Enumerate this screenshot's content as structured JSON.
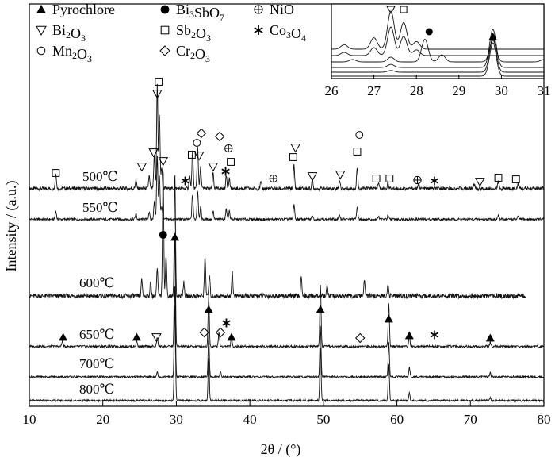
{
  "chart_data": {
    "type": "line",
    "xlabel": "2θ / (°)",
    "ylabel": "Intensity / (a.u.)",
    "xlim": [
      10,
      80
    ],
    "xticks": [
      10,
      20,
      30,
      40,
      50,
      60,
      70,
      80
    ],
    "legend_placement": "top-left",
    "legend": [
      {
        "symbol": "filled-triangle",
        "text": "Pyrochlore"
      },
      {
        "symbol": "filled-circle",
        "text": "Bi3SbO7"
      },
      {
        "symbol": "circled-plus",
        "text": "NiO"
      },
      {
        "symbol": "open-triangle-down",
        "text": "Bi2O3"
      },
      {
        "symbol": "open-square",
        "text": "Sb2O3"
      },
      {
        "symbol": "asterisk",
        "text": "Co3O4"
      },
      {
        "symbol": "open-circle",
        "text": "Mn2O3"
      },
      {
        "symbol": "open-diamond",
        "text": "Cr2O3"
      }
    ],
    "series": [
      {
        "name": "500℃",
        "peaks": [
          [
            13.6,
            0.15
          ],
          [
            24.5,
            0.08
          ],
          [
            26.3,
            0.12
          ],
          [
            27.0,
            0.3
          ],
          [
            27.4,
            1.0
          ],
          [
            27.7,
            0.7
          ],
          [
            28.0,
            0.2
          ],
          [
            31.8,
            0.12
          ],
          [
            32.2,
            0.35
          ],
          [
            32.9,
            0.4
          ],
          [
            33.3,
            0.2
          ],
          [
            35.0,
            0.15
          ],
          [
            36.8,
            0.12
          ],
          [
            37.2,
            0.1
          ],
          [
            41.5,
            0.06
          ],
          [
            46.0,
            0.22
          ],
          [
            48.5,
            0.08
          ],
          [
            52.2,
            0.08
          ],
          [
            54.6,
            0.2
          ],
          [
            57.5,
            0.05
          ],
          [
            58.8,
            0.06
          ],
          [
            63.0,
            0.05
          ],
          [
            70.5,
            0.05
          ],
          [
            73.8,
            0.07
          ],
          [
            76.5,
            0.05
          ]
        ]
      },
      {
        "name": "550℃",
        "peaks": [
          [
            13.6,
            0.12
          ],
          [
            24.5,
            0.08
          ],
          [
            26.3,
            0.1
          ],
          [
            27.0,
            0.25
          ],
          [
            27.4,
            0.9
          ],
          [
            27.7,
            0.6
          ],
          [
            28.0,
            0.18
          ],
          [
            32.2,
            0.35
          ],
          [
            32.9,
            0.4
          ],
          [
            33.3,
            0.18
          ],
          [
            35.0,
            0.12
          ],
          [
            36.8,
            0.15
          ],
          [
            37.2,
            0.12
          ],
          [
            46.0,
            0.22
          ],
          [
            48.5,
            0.06
          ],
          [
            52.2,
            0.07
          ],
          [
            54.6,
            0.18
          ],
          [
            57.5,
            0.05
          ],
          [
            58.8,
            0.05
          ],
          [
            73.8,
            0.06
          ],
          [
            76.5,
            0.04
          ]
        ]
      },
      {
        "name": "600℃",
        "peaks": [
          [
            25.3,
            0.12
          ],
          [
            26.5,
            0.1
          ],
          [
            27.4,
            0.2
          ],
          [
            28.2,
            0.95
          ],
          [
            28.6,
            0.3
          ],
          [
            29.8,
            0.9
          ],
          [
            31.0,
            0.1
          ],
          [
            33.9,
            0.3
          ],
          [
            34.5,
            0.15
          ],
          [
            37.6,
            0.18
          ],
          [
            47.0,
            0.15
          ],
          [
            50.5,
            0.08
          ],
          [
            55.6,
            0.12
          ],
          [
            58.8,
            0.08
          ]
        ]
      },
      {
        "name": "650℃",
        "peaks": [
          [
            14.5,
            0.05
          ],
          [
            24.6,
            0.05
          ],
          [
            27.4,
            0.08
          ],
          [
            29.8,
            1.0
          ],
          [
            34.4,
            0.45
          ],
          [
            35.8,
            0.12
          ],
          [
            37.5,
            0.08
          ],
          [
            49.6,
            0.55
          ],
          [
            58.9,
            0.38
          ],
          [
            61.7,
            0.1
          ],
          [
            72.7,
            0.04
          ]
        ]
      },
      {
        "name": "700℃",
        "peaks": [
          [
            27.4,
            0.05
          ],
          [
            29.8,
            1.0
          ],
          [
            34.4,
            0.45
          ],
          [
            36.0,
            0.06
          ],
          [
            49.6,
            0.55
          ],
          [
            58.9,
            0.38
          ],
          [
            61.7,
            0.1
          ],
          [
            72.7,
            0.04
          ]
        ]
      },
      {
        "name": "800℃",
        "peaks": [
          [
            29.8,
            1.0
          ],
          [
            34.4,
            0.45
          ],
          [
            49.6,
            0.55
          ],
          [
            58.9,
            0.38
          ],
          [
            61.7,
            0.08
          ],
          [
            72.7,
            0.03
          ]
        ]
      }
    ],
    "markers": [
      {
        "symbol": "open-square",
        "x": 13.6,
        "series": "500℃"
      },
      {
        "symbol": "open-triangle-down",
        "x": 25.3,
        "series": "500℃"
      },
      {
        "symbol": "open-triangle-down",
        "x": 26.9,
        "series": "500℃"
      },
      {
        "symbol": "open-triangle-down",
        "x": 27.4,
        "series": "500℃"
      },
      {
        "symbol": "open-square",
        "x": 27.6,
        "series": "500℃"
      },
      {
        "symbol": "open-triangle-down",
        "x": 28.2,
        "series": "500℃"
      },
      {
        "symbol": "asterisk",
        "x": 31.2,
        "series": "500℃"
      },
      {
        "symbol": "open-square",
        "x": 32.1,
        "series": "500℃"
      },
      {
        "symbol": "open-circle",
        "x": 32.8,
        "series": "500℃"
      },
      {
        "symbol": "open-diamond",
        "x": 33.4,
        "series": "500℃"
      },
      {
        "symbol": "open-triangle-down",
        "x": 33.1,
        "series": "500℃"
      },
      {
        "symbol": "open-triangle-down",
        "x": 35.0,
        "series": "500℃"
      },
      {
        "symbol": "open-diamond",
        "x": 35.9,
        "series": "500℃"
      },
      {
        "symbol": "asterisk",
        "x": 36.7,
        "series": "500℃"
      },
      {
        "symbol": "circled-plus",
        "x": 37.1,
        "series": "500℃"
      },
      {
        "symbol": "open-square",
        "x": 37.4,
        "series": "500℃"
      },
      {
        "symbol": "circled-plus",
        "x": 43.2,
        "series": "500℃"
      },
      {
        "symbol": "open-square",
        "x": 45.9,
        "series": "500℃"
      },
      {
        "symbol": "open-triangle-down",
        "x": 46.2,
        "series": "500℃"
      },
      {
        "symbol": "open-triangle-down",
        "x": 48.5,
        "series": "500℃"
      },
      {
        "symbol": "open-triangle-down",
        "x": 52.3,
        "series": "500℃"
      },
      {
        "symbol": "open-square",
        "x": 54.6,
        "series": "500℃"
      },
      {
        "symbol": "open-circle",
        "x": 54.9,
        "series": "500℃"
      },
      {
        "symbol": "open-square",
        "x": 57.2,
        "series": "500℃"
      },
      {
        "symbol": "open-square",
        "x": 59.0,
        "series": "500℃"
      },
      {
        "symbol": "circled-plus",
        "x": 62.8,
        "series": "500℃"
      },
      {
        "symbol": "asterisk",
        "x": 65.1,
        "series": "500℃"
      },
      {
        "symbol": "open-triangle-down",
        "x": 71.3,
        "series": "500℃"
      },
      {
        "symbol": "open-square",
        "x": 73.8,
        "series": "500℃"
      },
      {
        "symbol": "open-square",
        "x": 76.2,
        "series": "500℃"
      },
      {
        "symbol": "filled-circle",
        "x": 28.2,
        "series": "600℃"
      },
      {
        "symbol": "filled-triangle",
        "x": 29.8,
        "series": "600℃"
      },
      {
        "symbol": "filled-triangle",
        "x": 14.6,
        "series": "650℃"
      },
      {
        "symbol": "filled-triangle",
        "x": 24.6,
        "series": "650℃"
      },
      {
        "symbol": "open-triangle-down",
        "x": 27.3,
        "series": "650℃"
      },
      {
        "symbol": "open-diamond",
        "x": 33.8,
        "series": "650℃"
      },
      {
        "symbol": "filled-triangle",
        "x": 34.4,
        "series": "650℃"
      },
      {
        "symbol": "open-diamond",
        "x": 36.0,
        "series": "650℃"
      },
      {
        "symbol": "asterisk",
        "x": 36.8,
        "series": "650℃"
      },
      {
        "symbol": "filled-triangle",
        "x": 37.5,
        "series": "650℃"
      },
      {
        "symbol": "filled-triangle",
        "x": 49.6,
        "series": "650℃"
      },
      {
        "symbol": "open-diamond",
        "x": 55.0,
        "series": "650℃"
      },
      {
        "symbol": "filled-triangle",
        "x": 58.9,
        "series": "650℃"
      },
      {
        "symbol": "filled-triangle",
        "x": 61.7,
        "series": "650℃"
      },
      {
        "symbol": "asterisk",
        "x": 65.1,
        "series": "650℃"
      },
      {
        "symbol": "filled-triangle",
        "x": 72.7,
        "series": "650℃"
      }
    ],
    "inset": {
      "xlim": [
        26,
        31
      ],
      "xticks": [
        26,
        27,
        28,
        29,
        30,
        31
      ],
      "markers": [
        {
          "symbol": "open-triangle-down",
          "x": 27.4
        },
        {
          "symbol": "open-square",
          "x": 27.7
        },
        {
          "symbol": "filled-circle",
          "x": 28.3
        },
        {
          "symbol": "filled-triangle",
          "x": 29.8
        }
      ]
    }
  }
}
